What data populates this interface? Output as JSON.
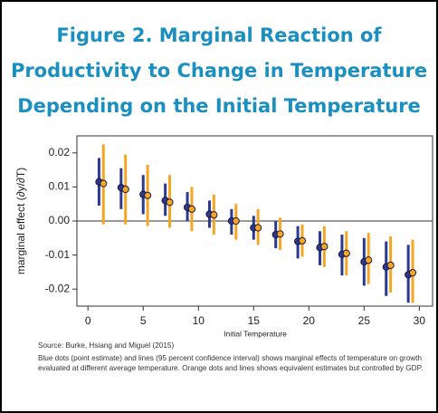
{
  "chart_data": {
    "type": "errorbar",
    "title": [
      "Figure 2. Marginal Reaction of",
      "Productivity to Change in Temperature",
      "Depending on the Initial Temperature"
    ],
    "ylabel": "marginal effect (∂y/∂T)",
    "xlabel": "Initial Temperature",
    "source": "Source: Burke, Hsiang and Miguel (2015)",
    "note": "Blue dots (point estimate) and lines (95 percent confidence interval) shows marginal effects of temperature on growth evaluated at different average temperature. Orange dots and lines shows equivalent estimates but controlled by GDP.",
    "xlim": [
      -1,
      31.2
    ],
    "xticks": [
      0,
      5,
      10,
      15,
      20,
      25,
      30
    ],
    "ylim": [
      -0.025,
      0.025
    ],
    "yticks": [
      0.02,
      0.01,
      {
        "value": 0,
        "label": "0.00"
      },
      -0.01,
      -0.02
    ],
    "series": [
      {
        "color": "#2b3990",
        "x": [
          1,
          3,
          5,
          7,
          9,
          11,
          13,
          15,
          17,
          19,
          21,
          23,
          25,
          27,
          29
        ],
        "values": [
          0.0115,
          0.0098,
          0.0078,
          0.006,
          0.004,
          0.002,
          0,
          -0.002,
          -0.004,
          -0.006,
          -0.0078,
          -0.0098,
          -0.012,
          -0.0135,
          -0.0158
        ],
        "lower": [
          0.0045,
          0.0035,
          0.002,
          0.0015,
          0,
          -0.002,
          -0.004,
          -0.0055,
          -0.008,
          -0.011,
          -0.013,
          -0.016,
          -0.019,
          -0.022,
          -0.024
        ],
        "upper": [
          0.0185,
          0.0155,
          0.0135,
          0.011,
          0.0085,
          0.006,
          0.0035,
          0.0015,
          0,
          -0.0015,
          -0.003,
          -0.004,
          -0.005,
          -0.006,
          -0.007
        ]
      },
      {
        "color": "#f5a623",
        "x": [
          1.4,
          3.4,
          5.4,
          7.4,
          9.4,
          11.4,
          13.4,
          15.4,
          17.4,
          19.4,
          21.4,
          23.4,
          25.4,
          27.4,
          29.4
        ],
        "values": [
          0.011,
          0.0093,
          0.0075,
          0.0055,
          0.0035,
          0.0018,
          0,
          -0.002,
          -0.0038,
          -0.0058,
          -0.0075,
          -0.0095,
          -0.0115,
          -0.013,
          -0.0152
        ],
        "lower": [
          -0.001,
          -0.001,
          -0.0015,
          -0.002,
          -0.003,
          -0.004,
          -0.0055,
          -0.007,
          -0.0085,
          -0.0105,
          -0.0135,
          -0.016,
          -0.0185,
          -0.021,
          -0.024
        ],
        "upper": [
          0.0225,
          0.0195,
          0.0165,
          0.0135,
          0.01,
          0.0078,
          0.005,
          0.0035,
          0.001,
          -0.001,
          -0.0015,
          -0.003,
          -0.0035,
          -0.0045,
          -0.0055
        ]
      }
    ]
  }
}
